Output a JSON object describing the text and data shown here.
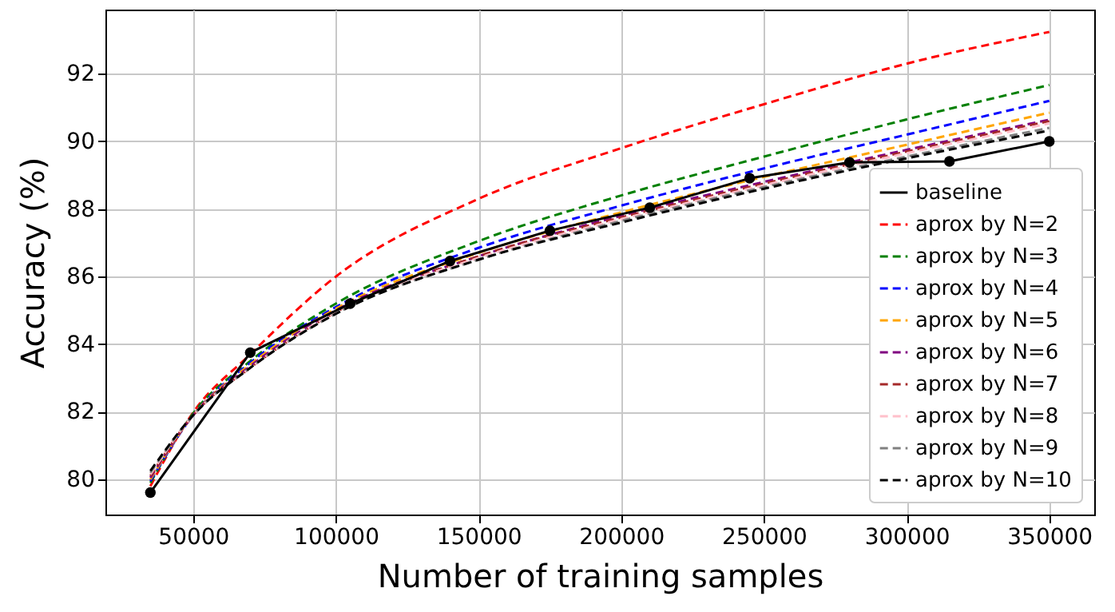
{
  "chart_data": {
    "type": "line",
    "xlabel": "Number of training samples",
    "ylabel": "Accuracy (%)",
    "xlim": [
      19250,
      365750
    ],
    "xticks": [
      50000,
      100000,
      150000,
      200000,
      250000,
      300000,
      350000
    ],
    "ylim": [
      78.96,
      93.9
    ],
    "yticks": [
      80,
      82,
      84,
      86,
      88,
      90,
      92
    ],
    "grid": true,
    "legend": "bottom right",
    "series": [
      {
        "name": "baseline",
        "color": "#000000",
        "marker": "circle",
        "line_style": "solid",
        "x": [
          35000,
          70000,
          105000,
          140000,
          175000,
          210000,
          245000,
          280000,
          315000,
          350000
        ],
        "values": [
          79.61,
          83.75,
          85.2,
          86.46,
          87.36,
          88.04,
          88.91,
          89.38,
          89.41,
          90.0
        ]
      },
      {
        "name": "aprox by N=2",
        "color": "#ff0000",
        "line_style": "dashed",
        "x": [
          35000,
          50000,
          70000,
          100000,
          150000,
          200000,
          250000,
          300000,
          350000
        ],
        "values": [
          79.8,
          81.98,
          83.7,
          86.0,
          88.3,
          89.8,
          91.1,
          92.3,
          93.24
        ]
      },
      {
        "name": "aprox by N=3",
        "color": "#008000",
        "line_style": "dashed",
        "x": [
          35000,
          50000,
          70000,
          100000,
          150000,
          200000,
          250000,
          300000,
          350000
        ],
        "values": [
          79.9,
          81.95,
          83.5,
          85.2,
          87.05,
          88.4,
          89.55,
          90.65,
          91.67
        ]
      },
      {
        "name": "aprox by N=4",
        "color": "#0000ff",
        "line_style": "dashed",
        "x": [
          35000,
          50000,
          70000,
          100000,
          150000,
          200000,
          250000,
          300000,
          350000
        ],
        "values": [
          79.95,
          81.9,
          83.45,
          85.1,
          86.85,
          88.1,
          89.2,
          90.2,
          91.2
        ]
      },
      {
        "name": "aprox by N=5",
        "color": "#ffa500",
        "line_style": "dashed",
        "x": [
          35000,
          50000,
          70000,
          100000,
          150000,
          200000,
          250000,
          300000,
          350000
        ],
        "values": [
          80.0,
          81.9,
          83.4,
          85.05,
          86.7,
          87.9,
          88.95,
          89.9,
          90.85
        ]
      },
      {
        "name": "aprox by N=6",
        "color": "#800080",
        "line_style": "dashed",
        "x": [
          35000,
          50000,
          70000,
          100000,
          150000,
          200000,
          250000,
          300000,
          350000
        ],
        "values": [
          80.05,
          81.9,
          83.35,
          85.0,
          86.6,
          87.8,
          88.8,
          89.75,
          90.64
        ]
      },
      {
        "name": "aprox by N=7",
        "color": "#a52a2a",
        "line_style": "dashed",
        "x": [
          35000,
          50000,
          70000,
          100000,
          150000,
          200000,
          250000,
          300000,
          350000
        ],
        "values": [
          80.1,
          81.9,
          83.3,
          84.95,
          86.6,
          87.75,
          88.75,
          89.7,
          90.6
        ]
      },
      {
        "name": "aprox by N=8",
        "color": "#ffc0cb",
        "line_style": "dashed",
        "x": [
          35000,
          50000,
          70000,
          100000,
          150000,
          200000,
          250000,
          300000,
          350000
        ],
        "values": [
          80.15,
          81.9,
          83.3,
          84.95,
          86.55,
          87.7,
          88.7,
          89.65,
          90.53
        ]
      },
      {
        "name": "aprox by N=9",
        "color": "#808080",
        "line_style": "dashed",
        "x": [
          35000,
          50000,
          70000,
          100000,
          150000,
          200000,
          250000,
          300000,
          350000
        ],
        "values": [
          80.2,
          81.9,
          83.3,
          84.9,
          86.5,
          87.65,
          88.65,
          89.55,
          90.4
        ]
      },
      {
        "name": "aprox by N=10",
        "color": "#000000",
        "line_style": "dashed",
        "x": [
          35000,
          50000,
          70000,
          100000,
          150000,
          200000,
          250000,
          300000,
          350000
        ],
        "values": [
          80.25,
          81.9,
          83.3,
          84.9,
          86.5,
          87.6,
          88.6,
          89.5,
          90.32
        ]
      }
    ]
  }
}
